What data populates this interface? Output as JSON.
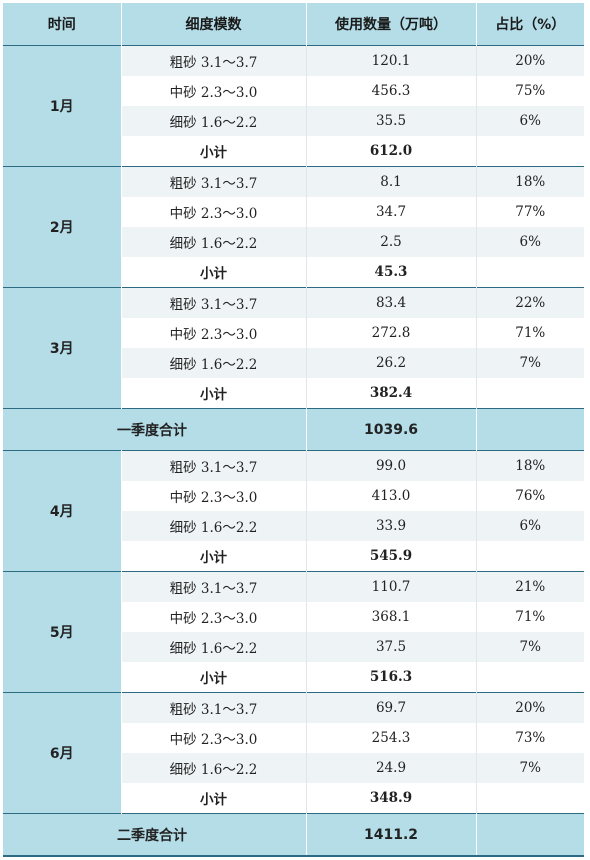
{
  "headers": [
    "时间",
    "细度模数",
    "使用数量（万吨）",
    "占比（%）"
  ],
  "sections": [
    {
      "months": [
        {
          "label": "1月",
          "rows": [
            {
              "grade": "粗砂 3.1～3.7",
              "amount": "120.1",
              "pct": "20%"
            },
            {
              "grade": "中砂 2.3～3.0",
              "amount": "456.3",
              "pct": "75%"
            },
            {
              "grade": "细砂 1.6～2.2",
              "amount": "35.5",
              "pct": "6%"
            }
          ],
          "subtotal_label": "小计",
          "subtotal": "612.0"
        },
        {
          "label": "2月",
          "rows": [
            {
              "grade": "粗砂 3.1～3.7",
              "amount": "8.1",
              "pct": "18%"
            },
            {
              "grade": "中砂 2.3～3.0",
              "amount": "34.7",
              "pct": "77%"
            },
            {
              "grade": "细砂 1.6～2.2",
              "amount": "2.5",
              "pct": "6%"
            }
          ],
          "subtotal_label": "小计",
          "subtotal": "45.3"
        },
        {
          "label": "3月",
          "rows": [
            {
              "grade": "粗砂 3.1～3.7",
              "amount": "83.4",
              "pct": "22%"
            },
            {
              "grade": "中砂 2.3～3.0",
              "amount": "272.8",
              "pct": "71%"
            },
            {
              "grade": "细砂 1.6～2.2",
              "amount": "26.2",
              "pct": "7%"
            }
          ],
          "subtotal_label": "小计",
          "subtotal": "382.4"
        }
      ],
      "total_label": "一季度合计",
      "total": "1039.6"
    },
    {
      "months": [
        {
          "label": "4月",
          "rows": [
            {
              "grade": "粗砂 3.1～3.7",
              "amount": "99.0",
              "pct": "18%"
            },
            {
              "grade": "中砂 2.3～3.0",
              "amount": "413.0",
              "pct": "76%"
            },
            {
              "grade": "细砂 1.6～2.2",
              "amount": "33.9",
              "pct": "6%"
            }
          ],
          "subtotal_label": "小计",
          "subtotal": "545.9"
        },
        {
          "label": "5月",
          "rows": [
            {
              "grade": "粗砂 3.1～3.7",
              "amount": "110.7",
              "pct": "21%"
            },
            {
              "grade": "中砂 2.3～3.0",
              "amount": "368.1",
              "pct": "71%"
            },
            {
              "grade": "细砂 1.6～2.2",
              "amount": "37.5",
              "pct": "7%"
            }
          ],
          "subtotal_label": "小计",
          "subtotal": "516.3"
        },
        {
          "label": "6月",
          "rows": [
            {
              "grade": "粗砂 3.1～3.7",
              "amount": "69.7",
              "pct": "20%"
            },
            {
              "grade": "中砂 2.3～3.0",
              "amount": "254.3",
              "pct": "73%"
            },
            {
              "grade": "细砂 1.6～2.2",
              "amount": "24.9",
              "pct": "7%"
            }
          ],
          "subtotal_label": "小计",
          "subtotal": "348.9"
        }
      ],
      "total_label": "二季度合计",
      "total": "1411.2"
    }
  ]
}
